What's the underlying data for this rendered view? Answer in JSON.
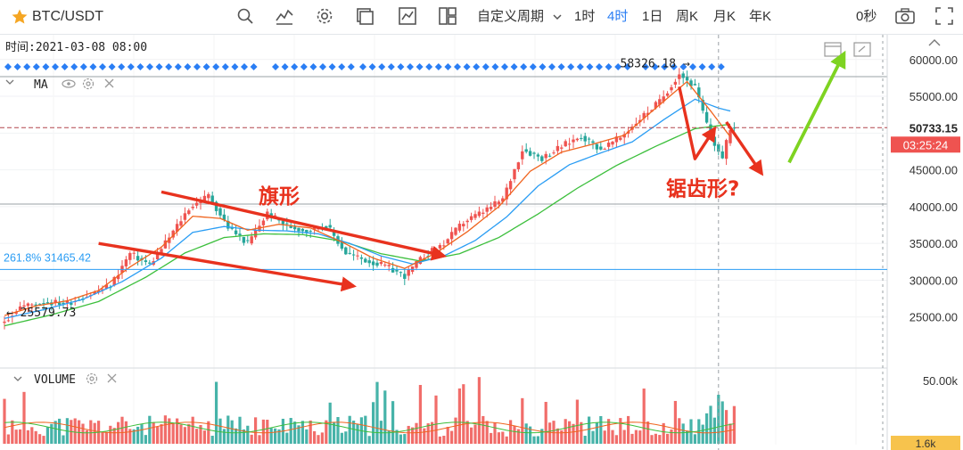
{
  "toolbar": {
    "symbol": "BTC/USDT",
    "custom_period": "自定义周期",
    "intervals": [
      "1时",
      "4时",
      "1日",
      "周K",
      "月K",
      "年K"
    ],
    "active_interval": "4时",
    "countdown_seconds": "0秒"
  },
  "colors": {
    "up": "#ef5350",
    "down": "#26a69a",
    "ma_fast": "#f0641e",
    "ma_mid": "#2a9df4",
    "ma_slow": "#3cbf3c",
    "annotation_arrow": "#e8321e",
    "projection_arrow": "#7ed321",
    "fib_line": "#2a9df4",
    "accent": "#2a7ef4"
  },
  "chart_data": {
    "type": "candlestick",
    "symbol": "BTC/USDT",
    "interval": "4h",
    "time_label": "时间:2021-03-08 08:00",
    "ylim": [
      20000,
      63000
    ],
    "yticks": [
      25000,
      30000,
      35000,
      40000,
      45000,
      50000,
      55000,
      60000
    ],
    "ytick_labels": [
      "25000.00",
      "30000.00",
      "35000.00",
      "40000.00",
      "45000.00",
      "50000.00",
      "55000.00",
      "60000.00"
    ],
    "current_price": "50733.15",
    "current_price_value": 50733.15,
    "bar_countdown": "03:25:24",
    "high_marker": "58326.18",
    "high_value": 58326.18,
    "low_marker": "25579.73",
    "low_value": 25579.73,
    "fib_level_label": "261.8% 31465.42",
    "fib_value": 31465.42,
    "indicator_label": "MA",
    "volume_label": "VOLUME",
    "volume_ticks": [
      "50.00k",
      "1.6k"
    ],
    "annotations": [
      "旗形",
      "锯齿形?"
    ],
    "price_path": [
      [
        0,
        24500
      ],
      [
        4,
        26400
      ],
      [
        10,
        27000
      ],
      [
        16,
        26900
      ],
      [
        22,
        28100
      ],
      [
        27,
        29300
      ],
      [
        32,
        33600
      ],
      [
        37,
        32100
      ],
      [
        42,
        35800
      ],
      [
        47,
        39800
      ],
      [
        52,
        41500
      ],
      [
        57,
        37200
      ],
      [
        62,
        35000
      ],
      [
        67,
        39100
      ],
      [
        72,
        37400
      ],
      [
        77,
        36700
      ],
      [
        82,
        37500
      ],
      [
        87,
        33700
      ],
      [
        92,
        32700
      ],
      [
        97,
        31900
      ],
      [
        102,
        30600
      ],
      [
        107,
        33300
      ],
      [
        112,
        35000
      ],
      [
        117,
        37900
      ],
      [
        122,
        39300
      ],
      [
        127,
        41000
      ],
      [
        132,
        47800
      ],
      [
        137,
        46600
      ],
      [
        142,
        48200
      ],
      [
        147,
        49600
      ],
      [
        152,
        47800
      ],
      [
        157,
        49400
      ],
      [
        162,
        52000
      ],
      [
        167,
        54300
      ],
      [
        172,
        58100
      ],
      [
        176,
        56200
      ],
      [
        180,
        49500
      ],
      [
        183,
        46500
      ],
      [
        185,
        50733
      ]
    ],
    "ma_fast_path": [
      [
        0,
        25200
      ],
      [
        8,
        26500
      ],
      [
        16,
        27200
      ],
      [
        24,
        28600
      ],
      [
        32,
        31800
      ],
      [
        40,
        34500
      ],
      [
        48,
        38700
      ],
      [
        55,
        38400
      ],
      [
        62,
        36800
      ],
      [
        70,
        37600
      ],
      [
        78,
        37100
      ],
      [
        86,
        35200
      ],
      [
        94,
        33000
      ],
      [
        102,
        31600
      ],
      [
        110,
        33700
      ],
      [
        118,
        36600
      ],
      [
        126,
        40000
      ],
      [
        134,
        44800
      ],
      [
        142,
        47400
      ],
      [
        150,
        48500
      ],
      [
        158,
        49700
      ],
      [
        166,
        53400
      ],
      [
        174,
        57000
      ],
      [
        180,
        53000
      ],
      [
        185,
        49500
      ]
    ],
    "ma_mid_path": [
      [
        0,
        24800
      ],
      [
        10,
        26000
      ],
      [
        20,
        27400
      ],
      [
        30,
        29800
      ],
      [
        40,
        33000
      ],
      [
        48,
        36500
      ],
      [
        56,
        37300
      ],
      [
        64,
        36800
      ],
      [
        72,
        36700
      ],
      [
        80,
        36300
      ],
      [
        88,
        35000
      ],
      [
        96,
        33300
      ],
      [
        104,
        32200
      ],
      [
        112,
        33300
      ],
      [
        120,
        35400
      ],
      [
        128,
        38600
      ],
      [
        136,
        42800
      ],
      [
        144,
        45700
      ],
      [
        152,
        47300
      ],
      [
        160,
        48800
      ],
      [
        168,
        51800
      ],
      [
        176,
        54600
      ],
      [
        182,
        53400
      ],
      [
        185,
        53000
      ]
    ],
    "ma_slow_path": [
      [
        0,
        23800
      ],
      [
        12,
        25300
      ],
      [
        24,
        27100
      ],
      [
        36,
        30400
      ],
      [
        46,
        33700
      ],
      [
        56,
        35800
      ],
      [
        66,
        36300
      ],
      [
        76,
        36200
      ],
      [
        86,
        35300
      ],
      [
        96,
        33600
      ],
      [
        106,
        32600
      ],
      [
        116,
        33600
      ],
      [
        126,
        35800
      ],
      [
        136,
        39000
      ],
      [
        146,
        42500
      ],
      [
        156,
        45600
      ],
      [
        166,
        48200
      ],
      [
        176,
        50600
      ],
      [
        185,
        51200
      ]
    ],
    "flag_upper": [
      [
        40,
        42000
      ],
      [
        112,
        33300
      ]
    ],
    "flag_lower": [
      [
        24,
        35000
      ],
      [
        89,
        29200
      ]
    ],
    "zigzag_path": [
      [
        172,
        56300
      ],
      [
        176,
        46500
      ],
      [
        181,
        50600
      ]
    ],
    "zigzag_continuation": [
      [
        184,
        51500
      ],
      [
        193,
        44500
      ]
    ],
    "projection_path": [
      [
        200,
        46000
      ],
      [
        214,
        60800
      ]
    ],
    "annotation_points": [
      [
        70,
        40500
      ],
      [
        178,
        41500
      ]
    ]
  }
}
